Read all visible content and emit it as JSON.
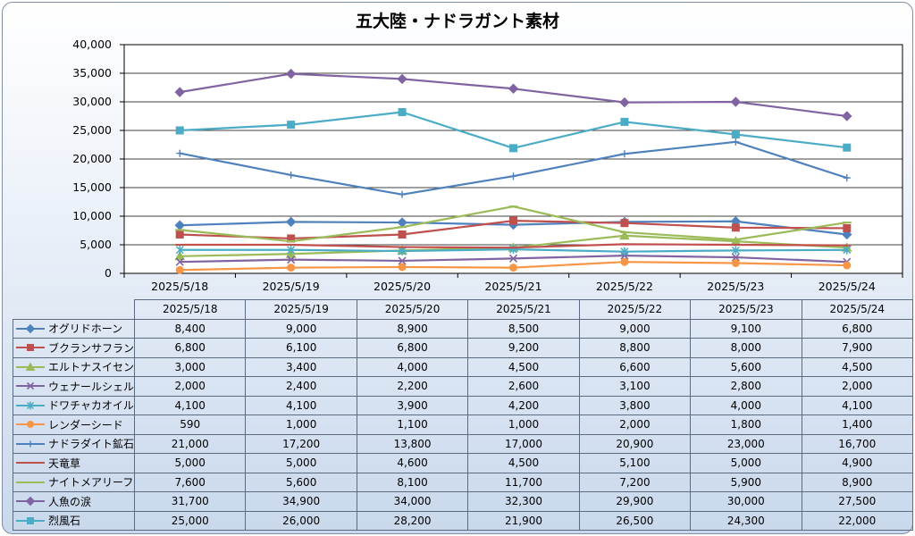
{
  "chart_data": {
    "type": "line",
    "title": "五大陸・ナドラガント素材",
    "xlabel": "",
    "ylabel": "",
    "ylim": [
      0,
      40000
    ],
    "yticks": [
      "0",
      "5,000",
      "10,000",
      "15,000",
      "20,000",
      "25,000",
      "30,000",
      "35,000",
      "40,000"
    ],
    "grid": true,
    "legend_placement": "data-table",
    "categories": [
      "2025/5/18",
      "2025/5/19",
      "2025/5/20",
      "2025/5/21",
      "2025/5/22",
      "2025/5/23",
      "2025/5/24"
    ],
    "series": [
      {
        "name": "オグリドホーン",
        "color": "#4f81bd",
        "marker": "diamond",
        "values": [
          8400,
          9000,
          8900,
          8500,
          9000,
          9100,
          6800
        ],
        "labels": [
          "8,400",
          "9,000",
          "8,900",
          "8,500",
          "9,000",
          "9,100",
          "6,800"
        ]
      },
      {
        "name": "ブクランサフラン",
        "color": "#c0504d",
        "marker": "square",
        "values": [
          6800,
          6100,
          6800,
          9200,
          8800,
          8000,
          7900
        ],
        "labels": [
          "6,800",
          "6,100",
          "6,800",
          "9,200",
          "8,800",
          "8,000",
          "7,900"
        ]
      },
      {
        "name": "エルトナスイセン",
        "color": "#9bbb59",
        "marker": "triangle",
        "values": [
          3000,
          3400,
          4000,
          4500,
          6600,
          5600,
          4500
        ],
        "labels": [
          "3,000",
          "3,400",
          "4,000",
          "4,500",
          "6,600",
          "5,600",
          "4,500"
        ]
      },
      {
        "name": "ウェナールシェル",
        "color": "#8064a2",
        "marker": "x",
        "values": [
          2000,
          2400,
          2200,
          2600,
          3100,
          2800,
          2000
        ],
        "labels": [
          "2,000",
          "2,400",
          "2,200",
          "2,600",
          "3,100",
          "2,800",
          "2,000"
        ]
      },
      {
        "name": "ドワチャカオイル",
        "color": "#4bacc6",
        "marker": "star",
        "values": [
          4100,
          4100,
          3900,
          4200,
          3800,
          4000,
          4100
        ],
        "labels": [
          "4,100",
          "4,100",
          "3,900",
          "4,200",
          "3,800",
          "4,000",
          "4,100"
        ]
      },
      {
        "name": "レンダーシード",
        "color": "#f79646",
        "marker": "circle",
        "values": [
          590,
          1000,
          1100,
          1000,
          2000,
          1800,
          1400
        ],
        "labels": [
          "590",
          "1,000",
          "1,100",
          "1,000",
          "2,000",
          "1,800",
          "1,400"
        ]
      },
      {
        "name": "ナドラダイト鉱石",
        "color": "#4f81bd",
        "marker": "plus",
        "values": [
          21000,
          17200,
          13800,
          17000,
          20900,
          23000,
          16700
        ],
        "labels": [
          "21,000",
          "17,200",
          "13,800",
          "17,000",
          "20,900",
          "23,000",
          "16,700"
        ]
      },
      {
        "name": "天竜草",
        "color": "#c0504d",
        "marker": "dash",
        "values": [
          5000,
          5000,
          4600,
          4500,
          5100,
          5000,
          4900
        ],
        "labels": [
          "5,000",
          "5,000",
          "4,600",
          "4,500",
          "5,100",
          "5,000",
          "4,900"
        ]
      },
      {
        "name": "ナイトメアリーフ",
        "color": "#9bbb59",
        "marker": "dash",
        "values": [
          7600,
          5600,
          8100,
          11700,
          7200,
          5900,
          8900
        ],
        "labels": [
          "7,600",
          "5,600",
          "8,100",
          "11,700",
          "7,200",
          "5,900",
          "8,900"
        ]
      },
      {
        "name": "人魚の涙",
        "color": "#8064a2",
        "marker": "diamond",
        "values": [
          31700,
          34900,
          34000,
          32300,
          29900,
          30000,
          27500
        ],
        "labels": [
          "31,700",
          "34,900",
          "34,000",
          "32,300",
          "29,900",
          "30,000",
          "27,500"
        ]
      },
      {
        "name": "烈風石",
        "color": "#4bacc6",
        "marker": "square",
        "values": [
          25000,
          26000,
          28200,
          21900,
          26500,
          24300,
          22000
        ],
        "labels": [
          "25,000",
          "26,000",
          "28,200",
          "21,900",
          "26,500",
          "24,300",
          "22,000"
        ]
      }
    ]
  }
}
